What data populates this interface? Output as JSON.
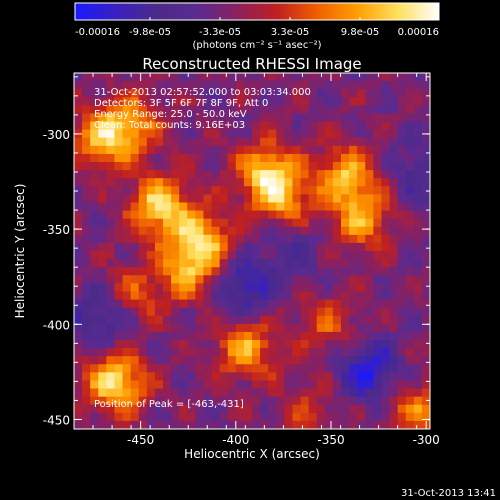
{
  "chart_data": {
    "type": "heatmap",
    "title": "Reconstructed RHESSI Image",
    "xlabel": "Heliocentric X (arcsec)",
    "ylabel": "Heliocentric Y (arcsec)",
    "xlim": [
      -485,
      -298
    ],
    "ylim": [
      -455,
      -268
    ],
    "x_ticks": [
      -450,
      -400,
      -350,
      -300
    ],
    "x_tick_labels": [
      "-450",
      "-400",
      "-350",
      "-300"
    ],
    "y_ticks": [
      -300,
      -350,
      -400,
      -450
    ],
    "y_tick_labels": [
      "-300",
      "-350",
      "-400",
      "-450"
    ],
    "colorbar": {
      "range": [
        -0.00016,
        0.00016
      ],
      "tick_labels": [
        "-0.00016",
        "-9.8e-05",
        "-3.3e-05",
        "3.3e-05",
        "9.8e-05",
        "0.00016"
      ],
      "units_label": "(photons cm⁻² s⁻¹ asec⁻²)",
      "colors": [
        "#1a1aff",
        "#3a20c0",
        "#4a2a8a",
        "#5a2a90",
        "#8a2060",
        "#c02020",
        "#f06000",
        "#ffa000",
        "#ffe060",
        "#ffffff"
      ]
    },
    "annotations": [
      "31-Oct-2013 02:57:52.000 to 03:03:34.000",
      "Detectors: 3F 5F 6F 7F 8F 9F, Att 0",
      "Energy Range: 25.0 - 50.0 keV",
      "Clean: Total counts: 9.16E+03"
    ],
    "peak_label": "Position of Peak = [-463,-431]",
    "peak": {
      "x": -463,
      "y": -431
    },
    "sources": [
      {
        "x": -470,
        "y": -303,
        "flux": 0.00012
      },
      {
        "x": -455,
        "y": -295,
        "flux": 0.0001
      },
      {
        "x": -440,
        "y": -338,
        "flux": 0.00015
      },
      {
        "x": -418,
        "y": -355,
        "flux": 0.00013
      },
      {
        "x": -425,
        "y": -372,
        "flux": 0.00011
      },
      {
        "x": -384,
        "y": -320,
        "flux": 0.00014
      },
      {
        "x": -375,
        "y": -335,
        "flux": 0.0001
      },
      {
        "x": -342,
        "y": -322,
        "flux": 0.00013
      },
      {
        "x": -334,
        "y": -345,
        "flux": 0.00011
      },
      {
        "x": -395,
        "y": -413,
        "flux": 0.00012
      },
      {
        "x": -463,
        "y": -431,
        "flux": 0.00016
      },
      {
        "x": -455,
        "y": -385,
        "flux": 8e-05
      },
      {
        "x": -352,
        "y": -400,
        "flux": 7e-05
      },
      {
        "x": -305,
        "y": -445,
        "flux": 9e-05
      },
      {
        "x": -362,
        "y": -445,
        "flux": 5e-05
      }
    ],
    "negatives": [
      {
        "x": -395,
        "y": -380,
        "flux": -0.0001
      },
      {
        "x": -330,
        "y": -425,
        "flux": -0.00012
      },
      {
        "x": -470,
        "y": -395,
        "flux": -9e-05
      },
      {
        "x": -305,
        "y": -320,
        "flux": -6e-05
      },
      {
        "x": -370,
        "y": -360,
        "flux": -5e-05
      }
    ]
  },
  "footer_timestamp": "31-Oct-2013 13:41"
}
